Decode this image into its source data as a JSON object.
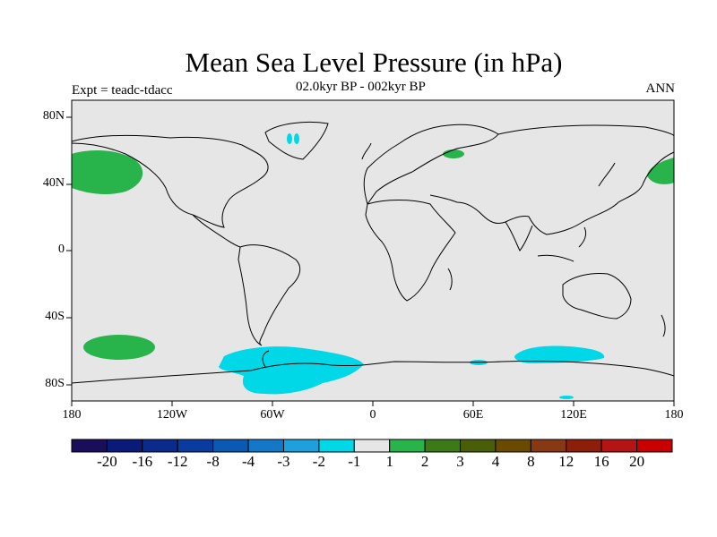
{
  "title": "Mean Sea Level Pressure (in hPa)",
  "subtitle": "02.0kyr BP - 002kyr BP",
  "left_label": "Expt = teadc-tdacc",
  "right_label": "ANN",
  "lat_labels": [
    "80N",
    "40N",
    "0",
    "40S",
    "80S"
  ],
  "lon_labels": [
    "180",
    "120W",
    "60W",
    "0",
    "60E",
    "120E",
    "180"
  ],
  "colorbar": {
    "colors": [
      "#1a0e5a",
      "#0a1a78",
      "#0a2a8c",
      "#0a3ca0",
      "#0a5ab4",
      "#1478c8",
      "#1ea0dc",
      "#00d8e8",
      "#e6e6e6",
      "#28b44a",
      "#3c7a18",
      "#4a5e0a",
      "#6a4a00",
      "#883812",
      "#8c1e0a",
      "#b41414",
      "#c80000"
    ],
    "labels": [
      "-20",
      "-16",
      "-12",
      "-8",
      "-4",
      "-3",
      "-2",
      "-1",
      "1",
      "2",
      "3",
      "4",
      "8",
      "12",
      "16",
      "20"
    ]
  },
  "anomaly_colors": {
    "positive": "#28b44a",
    "negative": "#00d8e8",
    "neutral": "#e6e6e6"
  }
}
